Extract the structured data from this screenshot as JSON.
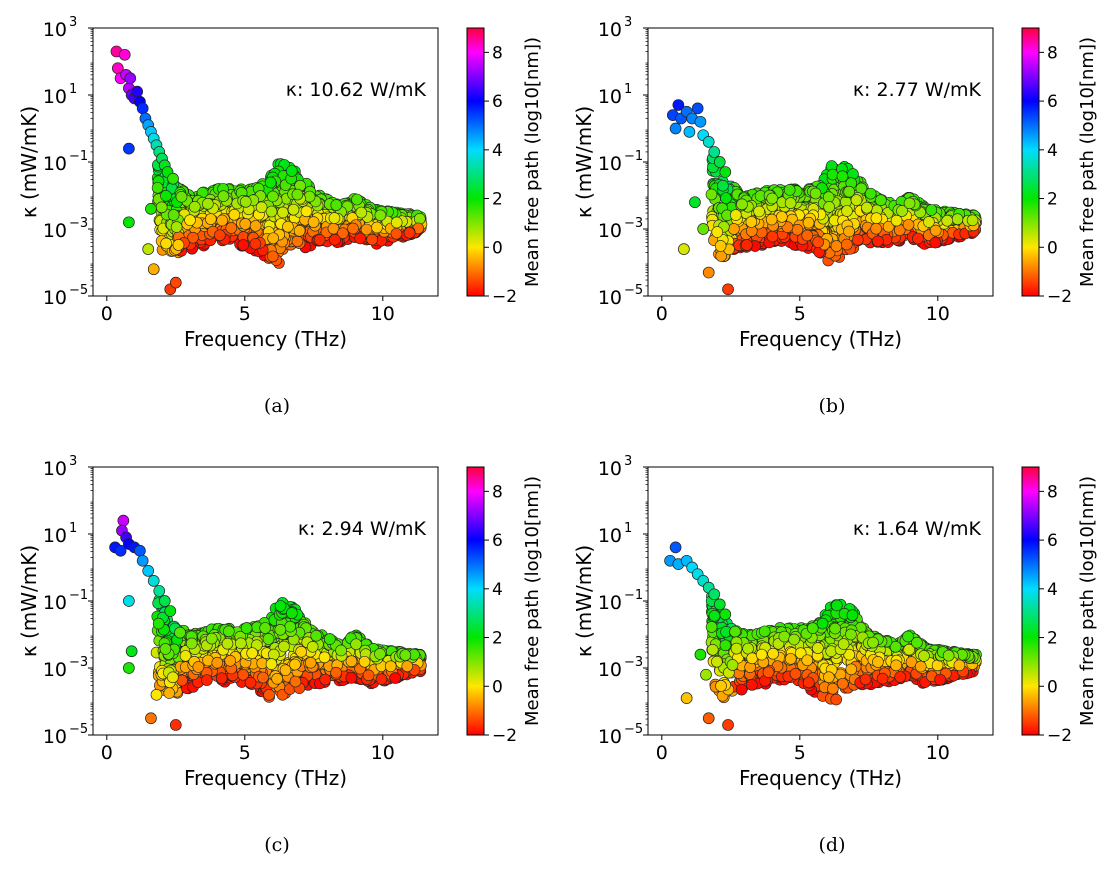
{
  "figure": {
    "panels": [
      {
        "id": "a",
        "caption": "(a)",
        "kappa_label": "κ: 10.62 W/mK"
      },
      {
        "id": "b",
        "caption": "(b)",
        "kappa_label": "κ: 2.77 W/mK"
      },
      {
        "id": "c",
        "caption": "(c)",
        "kappa_label": "κ: 2.94 W/mK"
      },
      {
        "id": "d",
        "caption": "(d)",
        "kappa_label": "κ: 1.64 W/mK"
      }
    ]
  },
  "chart_data": [
    {
      "type": "scatter",
      "panel": "a",
      "xlabel": "Frequency (THz)",
      "ylabel": "κ (mW/mK)",
      "colorbar_label": "Mean free path (log10[nm])",
      "xlim": [
        -0.5,
        12
      ],
      "xticks": [
        0,
        5,
        10
      ],
      "yscale": "log",
      "ylim_exp": [
        -5,
        3
      ],
      "yticks_exp": [
        -5,
        -3,
        -1,
        1,
        3
      ],
      "clim": [
        -2,
        9
      ],
      "cticks": [
        -2,
        0,
        2,
        4,
        6,
        8
      ],
      "annotation": "κ: 10.62 W/mK",
      "points": [
        [
          0.35,
          2.3,
          8.5
        ],
        [
          0.4,
          1.8,
          8.3
        ],
        [
          0.5,
          1.5,
          8.0
        ],
        [
          0.65,
          2.2,
          8.2
        ],
        [
          0.7,
          1.6,
          7.6
        ],
        [
          0.8,
          1.2,
          7.4
        ],
        [
          0.85,
          1.5,
          7.2
        ],
        [
          0.9,
          1.0,
          6.8
        ],
        [
          1.0,
          0.9,
          6.5
        ],
        [
          1.1,
          1.1,
          6.3
        ],
        [
          1.2,
          0.8,
          6.0
        ],
        [
          1.3,
          0.6,
          5.6
        ],
        [
          1.4,
          0.3,
          5.0
        ],
        [
          1.5,
          0.1,
          4.5
        ],
        [
          1.6,
          -0.1,
          4.2
        ],
        [
          1.7,
          -0.3,
          3.8
        ],
        [
          1.8,
          -0.5,
          3.4
        ],
        [
          1.9,
          -0.7,
          3.0
        ],
        [
          2.0,
          -0.9,
          2.7
        ],
        [
          2.1,
          -1.1,
          2.3
        ],
        [
          2.2,
          -1.3,
          2.0
        ],
        [
          2.4,
          -1.5,
          1.6
        ],
        [
          0.8,
          -0.6,
          5.5
        ],
        [
          0.8,
          -2.8,
          2.0
        ],
        [
          1.6,
          -2.4,
          1.8
        ],
        [
          1.7,
          -4.2,
          -0.5
        ],
        [
          2.3,
          -4.8,
          -1.5
        ],
        [
          2.5,
          -4.6,
          -1.4
        ],
        [
          1.5,
          -3.6,
          0.5
        ]
      ]
    },
    {
      "type": "scatter",
      "panel": "b",
      "xlabel": "Frequency (THz)",
      "ylabel": "κ (mW/mK)",
      "colorbar_label": "Mean free path (log10[nm])",
      "xlim": [
        -0.5,
        12
      ],
      "xticks": [
        0,
        5,
        10
      ],
      "yscale": "log",
      "ylim_exp": [
        -5,
        3
      ],
      "yticks_exp": [
        -5,
        -3,
        -1,
        1,
        3
      ],
      "clim": [
        -2,
        9
      ],
      "cticks": [
        -2,
        0,
        2,
        4,
        6,
        8
      ],
      "annotation": "κ: 2.77 W/mK",
      "points": [
        [
          0.6,
          0.7,
          5.8
        ],
        [
          0.4,
          0.4,
          5.4
        ],
        [
          0.7,
          0.3,
          5.2
        ],
        [
          0.9,
          0.5,
          5.0
        ],
        [
          1.1,
          0.3,
          4.8
        ],
        [
          1.3,
          0.6,
          5.3
        ],
        [
          1.4,
          0.2,
          4.6
        ],
        [
          0.5,
          0.0,
          4.8
        ],
        [
          1.0,
          -0.1,
          4.3
        ],
        [
          1.5,
          -0.2,
          4.0
        ],
        [
          1.7,
          -0.4,
          3.6
        ],
        [
          1.9,
          -0.7,
          3.1
        ],
        [
          2.1,
          -1.0,
          2.5
        ],
        [
          2.3,
          -1.3,
          2.1
        ],
        [
          1.2,
          -2.2,
          2.3
        ],
        [
          1.5,
          -3.0,
          1.2
        ],
        [
          0.8,
          -3.6,
          0.3
        ],
        [
          1.7,
          -4.3,
          -0.8
        ],
        [
          2.4,
          -4.8,
          -1.5
        ]
      ]
    },
    {
      "type": "scatter",
      "panel": "c",
      "xlabel": "Frequency (THz)",
      "ylabel": "κ (mW/mK)",
      "colorbar_label": "Mean free path (log10[nm])",
      "xlim": [
        -0.5,
        12
      ],
      "xticks": [
        0,
        5,
        10
      ],
      "yscale": "log",
      "ylim_exp": [
        -5,
        3
      ],
      "yticks_exp": [
        -5,
        -3,
        -1,
        1,
        3
      ],
      "clim": [
        -2,
        9
      ],
      "cticks": [
        -2,
        0,
        2,
        4,
        6,
        8
      ],
      "annotation": "κ: 2.94 W/mK",
      "points": [
        [
          0.6,
          1.4,
          7.6
        ],
        [
          0.55,
          1.1,
          7.2
        ],
        [
          0.7,
          0.9,
          6.5
        ],
        [
          0.3,
          0.6,
          5.8
        ],
        [
          0.5,
          0.5,
          5.6
        ],
        [
          0.8,
          0.7,
          6.0
        ],
        [
          1.0,
          0.6,
          5.8
        ],
        [
          1.2,
          0.5,
          5.2
        ],
        [
          1.3,
          0.2,
          4.6
        ],
        [
          1.5,
          -0.1,
          4.2
        ],
        [
          1.7,
          -0.4,
          3.7
        ],
        [
          1.9,
          -0.7,
          3.2
        ],
        [
          2.1,
          -1.0,
          2.6
        ],
        [
          2.3,
          -1.3,
          2.1
        ],
        [
          0.8,
          -1.0,
          3.8
        ],
        [
          0.9,
          -2.5,
          2.2
        ],
        [
          0.8,
          -3.0,
          1.8
        ],
        [
          1.8,
          -3.8,
          0.0
        ],
        [
          1.6,
          -4.5,
          -1.0
        ],
        [
          2.5,
          -4.7,
          -1.6
        ]
      ]
    },
    {
      "type": "scatter",
      "panel": "d",
      "xlabel": "Frequency (THz)",
      "ylabel": "κ (mW/mK)",
      "colorbar_label": "Mean free path (log10[nm])",
      "xlim": [
        -0.5,
        12
      ],
      "xticks": [
        0,
        5,
        10
      ],
      "yscale": "log",
      "ylim_exp": [
        -5,
        3
      ],
      "yticks_exp": [
        -5,
        -3,
        -1,
        1,
        3
      ],
      "clim": [
        -2,
        9
      ],
      "cticks": [
        -2,
        0,
        2,
        4,
        6,
        8
      ],
      "annotation": "κ: 1.64 W/mK",
      "points": [
        [
          0.5,
          0.6,
          5.2
        ],
        [
          0.3,
          0.2,
          4.6
        ],
        [
          0.6,
          0.1,
          4.4
        ],
        [
          0.9,
          0.2,
          4.3
        ],
        [
          1.1,
          0.0,
          4.0
        ],
        [
          1.3,
          -0.2,
          3.8
        ],
        [
          1.5,
          -0.4,
          3.6
        ],
        [
          1.7,
          -0.6,
          3.2
        ],
        [
          1.9,
          -0.8,
          2.8
        ],
        [
          2.1,
          -1.1,
          2.3
        ],
        [
          2.3,
          -1.4,
          1.9
        ],
        [
          1.4,
          -2.6,
          1.8
        ],
        [
          1.6,
          -3.2,
          0.8
        ],
        [
          0.9,
          -3.9,
          -0.3
        ],
        [
          1.7,
          -4.5,
          -1.2
        ],
        [
          2.4,
          -4.7,
          -1.5
        ]
      ]
    }
  ]
}
